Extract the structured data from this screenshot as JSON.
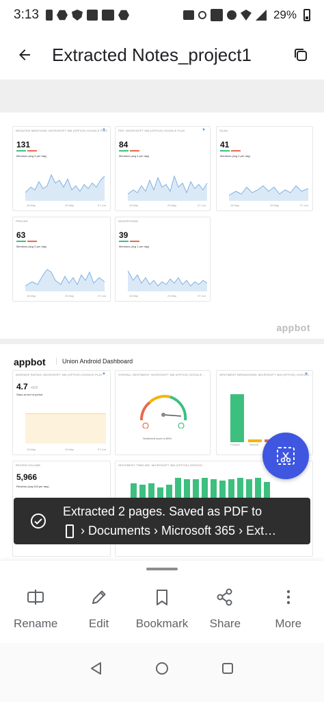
{
  "status_bar": {
    "time": "3:13",
    "battery": "29%",
    "icons": [
      "sim-icon",
      "location-icon",
      "shield-icon",
      "image-icon",
      "vpn-icon",
      "hex-icon",
      "briefcase-icon",
      "key-icon",
      "volte-icon",
      "mute-icon",
      "wifi-icon",
      "signal-icon",
      "battery-icon"
    ]
  },
  "app_bar": {
    "title": "Extracted Notes_project1"
  },
  "page1": {
    "cards": [
      {
        "title": "NEGATIVE MENTIONS: MICROSOFT 365 (OFFICE) GOOGLE PLAY",
        "value": "131",
        "sub": "Mentions (avg 5 per day)",
        "ax": [
          "16 May",
          "29 May",
          "07 Jun"
        ]
      },
      {
        "title": "PDF: MICROSOFT 365 (OFFICE) GOOGLE PLAY",
        "value": "84",
        "sub": "Mentions (avg 4 per day)",
        "ax": [
          "16 May",
          "29 May",
          "07 Jun"
        ]
      },
      {
        "title": "SCAN",
        "value": "41",
        "sub": "Mentions (avg 2 per day)",
        "ax": [
          "16 May",
          "29 May",
          "07 Jun"
        ]
      },
      {
        "title": "PRICING",
        "value": "63",
        "sub": "Mentions (avg 3 per day)",
        "ax": [
          "16 May",
          "29 May",
          "07 Jun"
        ]
      },
      {
        "title": "ADVERTISING",
        "value": "39",
        "sub": "Mentions (avg 1 per day)",
        "ax": [
          "16 May",
          "29 May",
          "07 Jun"
        ]
      }
    ],
    "watermark": "appbot"
  },
  "page2": {
    "logo": "appbot",
    "dashboard_title": "Union Android Dashboard",
    "cards": [
      {
        "title": "AVERAGE RATING: MICROSOFT 365 (OFFICE) GOOGLE PLAY",
        "value": "4.7",
        "delta": "+0.0",
        "sub": "Stars at end of period",
        "ax": [
          "16 May",
          "29 May",
          "07 Jun"
        ]
      },
      {
        "title": "OVERALL SENTIMENT: MICROSOFT 365 (OFFICE) GOOGLE...",
        "gauge_caption": "Sentiment score is 85%"
      },
      {
        "title": "SENTIMENT BREAKDOWN: MICROSOFT 365 (OFFICE) GOOGLE...",
        "ax": [
          "Positive",
          "Neutral"
        ]
      },
      {
        "title": "REVIEW VOLUME",
        "value": "5,966",
        "sub": "Reviews (avg 243 per day)"
      },
      {
        "title": "SENTIMENT TIMELINE: MICROSOFT 365 (OFFICE) GOOGLE..."
      }
    ]
  },
  "snackbar": {
    "line1": "Extracted 2 pages. Saved as PDF to",
    "line2": "› Documents › Microsoft 365 › Ext…"
  },
  "actions": [
    {
      "label": "Rename",
      "icon": "rename-icon"
    },
    {
      "label": "Edit",
      "icon": "pencil-icon"
    },
    {
      "label": "Bookmark",
      "icon": "bookmark-icon"
    },
    {
      "label": "Share",
      "icon": "share-icon"
    },
    {
      "label": "More",
      "icon": "more-vertical-icon"
    }
  ],
  "colors": {
    "accent": "#3f56e0",
    "chart_line": "#7fb0e0",
    "chart_fill": "#dbe9f7",
    "positive": "#3dbf7f",
    "neutral": "#f5b400",
    "negative": "#e86a4b",
    "snackbar": "#2e2e2e"
  }
}
